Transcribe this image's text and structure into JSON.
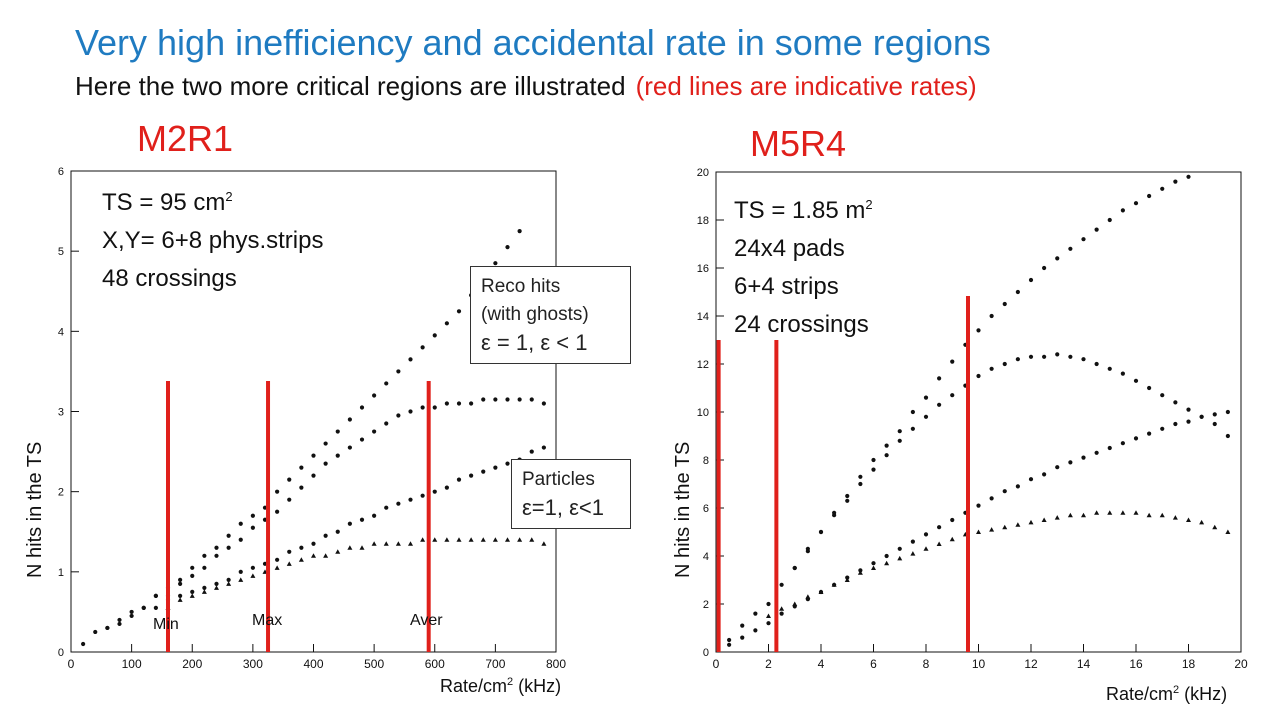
{
  "slide": {
    "title": "Very high inefficiency and accidental rate in some regions",
    "subtitle": "Here the two more critical regions are illustrated",
    "subtitle_note": "(red lines are indicative rates)",
    "colors": {
      "title": "#1f7bc1",
      "accent_red": "#e0201b"
    }
  },
  "left_panel": {
    "region": "M2R1",
    "info": [
      "TS = 95 cm",
      "X,Y= 6+8 phys.strips",
      "48 crossings"
    ],
    "info_sup": "2",
    "box_reco": {
      "line1": "Reco hits",
      "line2": "(with ghosts)",
      "line3": "ε = 1, ε < 1"
    },
    "box_particles": {
      "line1": "Particles",
      "line2": "ε=1, ε<1"
    },
    "ylabel": "N hits in the TS",
    "xlabel": "Rate/cm",
    "xlabel_sup": "2",
    "xlabel_unit": "(kHz)",
    "rate_labels": [
      "Min",
      "Max",
      "Aver"
    ]
  },
  "right_panel": {
    "region": "M5R4",
    "info": [
      "TS = 1.85 m",
      "24x4 pads",
      "6+4 strips",
      "24 crossings"
    ],
    "info_sup": "2",
    "ylabel": "N hits in the TS",
    "xlabel": "Rate/cm",
    "xlabel_sup": "2",
    "xlabel_unit": "(kHz)"
  },
  "chart_data": [
    {
      "type": "scatter",
      "title": "M2R1",
      "xlabel": "Rate/cm2 (kHz)",
      "ylabel": "N hits in the TS",
      "xlim": [
        0,
        800
      ],
      "ylim": [
        0,
        6
      ],
      "xticks": [
        0,
        100,
        200,
        300,
        400,
        500,
        600,
        700,
        800
      ],
      "yticks": [
        0,
        1,
        2,
        3,
        4,
        5,
        6
      ],
      "grid": false,
      "vlines": [
        {
          "x": 160,
          "label": "Min"
        },
        {
          "x": 325,
          "label": "Max"
        },
        {
          "x": 590,
          "label": "Aver"
        }
      ],
      "series": [
        {
          "marker": "dot",
          "x": [
            20,
            40,
            60,
            80,
            100,
            120,
            140,
            160,
            180,
            200,
            220,
            240,
            260,
            280,
            300,
            320,
            340,
            360,
            380,
            400,
            420,
            440,
            460,
            480,
            500,
            520,
            540,
            560,
            580,
            600,
            620,
            640,
            660,
            680,
            700,
            720,
            740
          ],
          "y": [
            0.1,
            0.25,
            0.3,
            0.4,
            0.5,
            0.55,
            0.7,
            0.8,
            0.9,
            1.05,
            1.2,
            1.3,
            1.45,
            1.6,
            1.7,
            1.8,
            2.0,
            2.15,
            2.3,
            2.45,
            2.6,
            2.75,
            2.9,
            3.05,
            3.2,
            3.35,
            3.5,
            3.65,
            3.8,
            3.95,
            4.1,
            4.25,
            4.45,
            4.65,
            4.85,
            5.05,
            5.25
          ]
        },
        {
          "marker": "dot",
          "x": [
            60,
            80,
            100,
            120,
            140,
            160,
            180,
            200,
            220,
            240,
            260,
            280,
            300,
            320,
            340,
            360,
            380,
            400,
            420,
            440,
            460,
            480,
            500,
            520,
            540,
            560,
            580,
            600,
            620,
            640,
            660,
            680,
            700,
            720,
            740,
            760,
            780
          ],
          "y": [
            0.3,
            0.35,
            0.45,
            0.55,
            0.7,
            0.7,
            0.85,
            0.95,
            1.05,
            1.2,
            1.3,
            1.4,
            1.55,
            1.65,
            1.75,
            1.9,
            2.05,
            2.2,
            2.35,
            2.45,
            2.55,
            2.65,
            2.75,
            2.85,
            2.95,
            3.0,
            3.05,
            3.05,
            3.1,
            3.1,
            3.1,
            3.15,
            3.15,
            3.15,
            3.15,
            3.15,
            3.1
          ]
        },
        {
          "marker": "dot",
          "x": [
            140,
            160,
            180,
            200,
            220,
            240,
            260,
            280,
            300,
            320,
            340,
            360,
            380,
            400,
            420,
            440,
            460,
            480,
            500,
            520,
            540,
            560,
            580,
            600,
            620,
            640,
            660,
            680,
            700,
            720,
            740,
            760,
            780
          ],
          "y": [
            0.55,
            0.65,
            0.7,
            0.75,
            0.8,
            0.85,
            0.9,
            1.0,
            1.05,
            1.1,
            1.15,
            1.25,
            1.3,
            1.35,
            1.45,
            1.5,
            1.6,
            1.65,
            1.7,
            1.8,
            1.85,
            1.9,
            1.95,
            2.0,
            2.05,
            2.15,
            2.2,
            2.25,
            2.3,
            2.35,
            2.4,
            2.5,
            2.55
          ]
        },
        {
          "marker": "triangle",
          "x": [
            160,
            180,
            200,
            220,
            240,
            260,
            280,
            300,
            320,
            340,
            360,
            380,
            400,
            420,
            440,
            460,
            480,
            500,
            520,
            540,
            560,
            580,
            600,
            620,
            640,
            660,
            680,
            700,
            720,
            740,
            760,
            780
          ],
          "y": [
            0.55,
            0.65,
            0.7,
            0.75,
            0.8,
            0.85,
            0.9,
            0.95,
            1.0,
            1.05,
            1.1,
            1.15,
            1.2,
            1.2,
            1.25,
            1.3,
            1.3,
            1.35,
            1.35,
            1.35,
            1.35,
            1.4,
            1.4,
            1.4,
            1.4,
            1.4,
            1.4,
            1.4,
            1.4,
            1.4,
            1.4,
            1.35
          ]
        }
      ]
    },
    {
      "type": "scatter",
      "title": "M5R4",
      "xlabel": "Rate/cm2 (kHz)",
      "ylabel": "N hits in the TS",
      "xlim": [
        0,
        20
      ],
      "ylim": [
        0,
        20
      ],
      "xticks": [
        0,
        2,
        4,
        6,
        8,
        10,
        12,
        14,
        16,
        18,
        20
      ],
      "yticks": [
        0,
        2,
        4,
        6,
        8,
        10,
        12,
        14,
        16,
        18,
        20
      ],
      "grid": false,
      "vlines": [
        {
          "x": 0.1,
          "label": ""
        },
        {
          "x": 2.3,
          "label": ""
        },
        {
          "x": 9.6,
          "label": ""
        }
      ],
      "series": [
        {
          "marker": "dot",
          "x": [
            0.5,
            1.0,
            1.5,
            2.0,
            2.5,
            3.0,
            3.5,
            4.0,
            4.5,
            5.0,
            5.5,
            6.0,
            6.5,
            7.0,
            7.5,
            8.0,
            8.5,
            9.0,
            9.5,
            10.0,
            10.5,
            11.0,
            11.5,
            12.0,
            12.5,
            13.0,
            13.5,
            14.0,
            14.5,
            15.0,
            15.5,
            16.0,
            16.5,
            17.0,
            17.5,
            18.0
          ],
          "y": [
            0.5,
            1.1,
            1.6,
            2.0,
            2.8,
            3.5,
            4.3,
            5.0,
            5.8,
            6.5,
            7.3,
            8.0,
            8.6,
            9.2,
            10.0,
            10.6,
            11.4,
            12.1,
            12.8,
            13.4,
            14.0,
            14.5,
            15.0,
            15.5,
            16.0,
            16.4,
            16.8,
            17.2,
            17.6,
            18.0,
            18.4,
            18.7,
            19.0,
            19.3,
            19.6,
            19.8
          ]
        },
        {
          "marker": "dot",
          "x": [
            3.0,
            3.5,
            4.0,
            4.5,
            5.0,
            5.5,
            6.0,
            6.5,
            7.0,
            7.5,
            8.0,
            8.5,
            9.0,
            9.5,
            10.0,
            10.5,
            11.0,
            11.5,
            12.0,
            12.5,
            13.0,
            13.5,
            14.0,
            14.5,
            15.0,
            15.5,
            16.0,
            16.5,
            17.0,
            17.5,
            18.0,
            18.5,
            19.0,
            19.5
          ],
          "y": [
            3.5,
            4.2,
            5.0,
            5.7,
            6.3,
            7.0,
            7.6,
            8.2,
            8.8,
            9.3,
            9.8,
            10.3,
            10.7,
            11.1,
            11.5,
            11.8,
            12.0,
            12.2,
            12.3,
            12.3,
            12.4,
            12.3,
            12.2,
            12.0,
            11.8,
            11.6,
            11.3,
            11.0,
            10.7,
            10.4,
            10.1,
            9.8,
            9.5,
            9.0
          ]
        },
        {
          "marker": "dot",
          "x": [
            0.5,
            1.0,
            1.5,
            2.0,
            2.5,
            3.0,
            3.5,
            4.0,
            4.5,
            5.0,
            5.5,
            6.0,
            6.5,
            7.0,
            7.5,
            8.0,
            8.5,
            9.0,
            9.5,
            10.0,
            10.5,
            11.0,
            11.5,
            12.0,
            12.5,
            13.0,
            13.5,
            14.0,
            14.5,
            15.0,
            15.5,
            16.0,
            16.5,
            17.0,
            17.5,
            18.0,
            18.5,
            19.0,
            19.5
          ],
          "y": [
            0.3,
            0.6,
            0.9,
            1.2,
            1.6,
            1.9,
            2.2,
            2.5,
            2.8,
            3.1,
            3.4,
            3.7,
            4.0,
            4.3,
            4.6,
            4.9,
            5.2,
            5.5,
            5.8,
            6.1,
            6.4,
            6.7,
            6.9,
            7.2,
            7.4,
            7.7,
            7.9,
            8.1,
            8.3,
            8.5,
            8.7,
            8.9,
            9.1,
            9.3,
            9.5,
            9.6,
            9.8,
            9.9,
            10.0
          ]
        },
        {
          "marker": "triangle",
          "x": [
            2.0,
            2.5,
            3.0,
            3.5,
            4.0,
            4.5,
            5.0,
            5.5,
            6.0,
            6.5,
            7.0,
            7.5,
            8.0,
            8.5,
            9.0,
            9.5,
            10.0,
            10.5,
            11.0,
            11.5,
            12.0,
            12.5,
            13.0,
            13.5,
            14.0,
            14.5,
            15.0,
            15.5,
            16.0,
            16.5,
            17.0,
            17.5,
            18.0,
            18.5,
            19.0,
            19.5
          ],
          "y": [
            1.5,
            1.8,
            2.0,
            2.3,
            2.5,
            2.8,
            3.0,
            3.3,
            3.5,
            3.7,
            3.9,
            4.1,
            4.3,
            4.5,
            4.7,
            4.9,
            5.0,
            5.1,
            5.2,
            5.3,
            5.4,
            5.5,
            5.6,
            5.7,
            5.7,
            5.8,
            5.8,
            5.8,
            5.8,
            5.7,
            5.7,
            5.6,
            5.5,
            5.4,
            5.2,
            5.0
          ]
        }
      ]
    }
  ]
}
